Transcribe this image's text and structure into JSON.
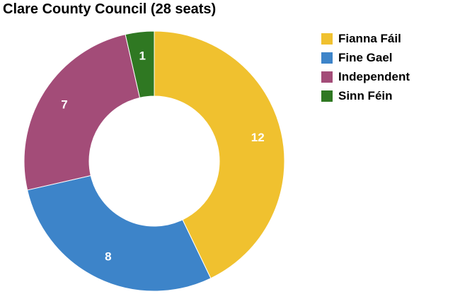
{
  "chart_data": {
    "type": "pie",
    "variant": "donut",
    "title": "Clare County Council (28 seats)",
    "categories": [
      "Fianna Fáil",
      "Fine Gael",
      "Independent",
      "Sinn Féin"
    ],
    "values": [
      12,
      8,
      7,
      1
    ],
    "colors": [
      "#f0c12f",
      "#3d84c9",
      "#a34c78",
      "#2f7822"
    ],
    "legend_position": "top-right",
    "start_angle_deg": 0,
    "direction": "clockwise"
  }
}
